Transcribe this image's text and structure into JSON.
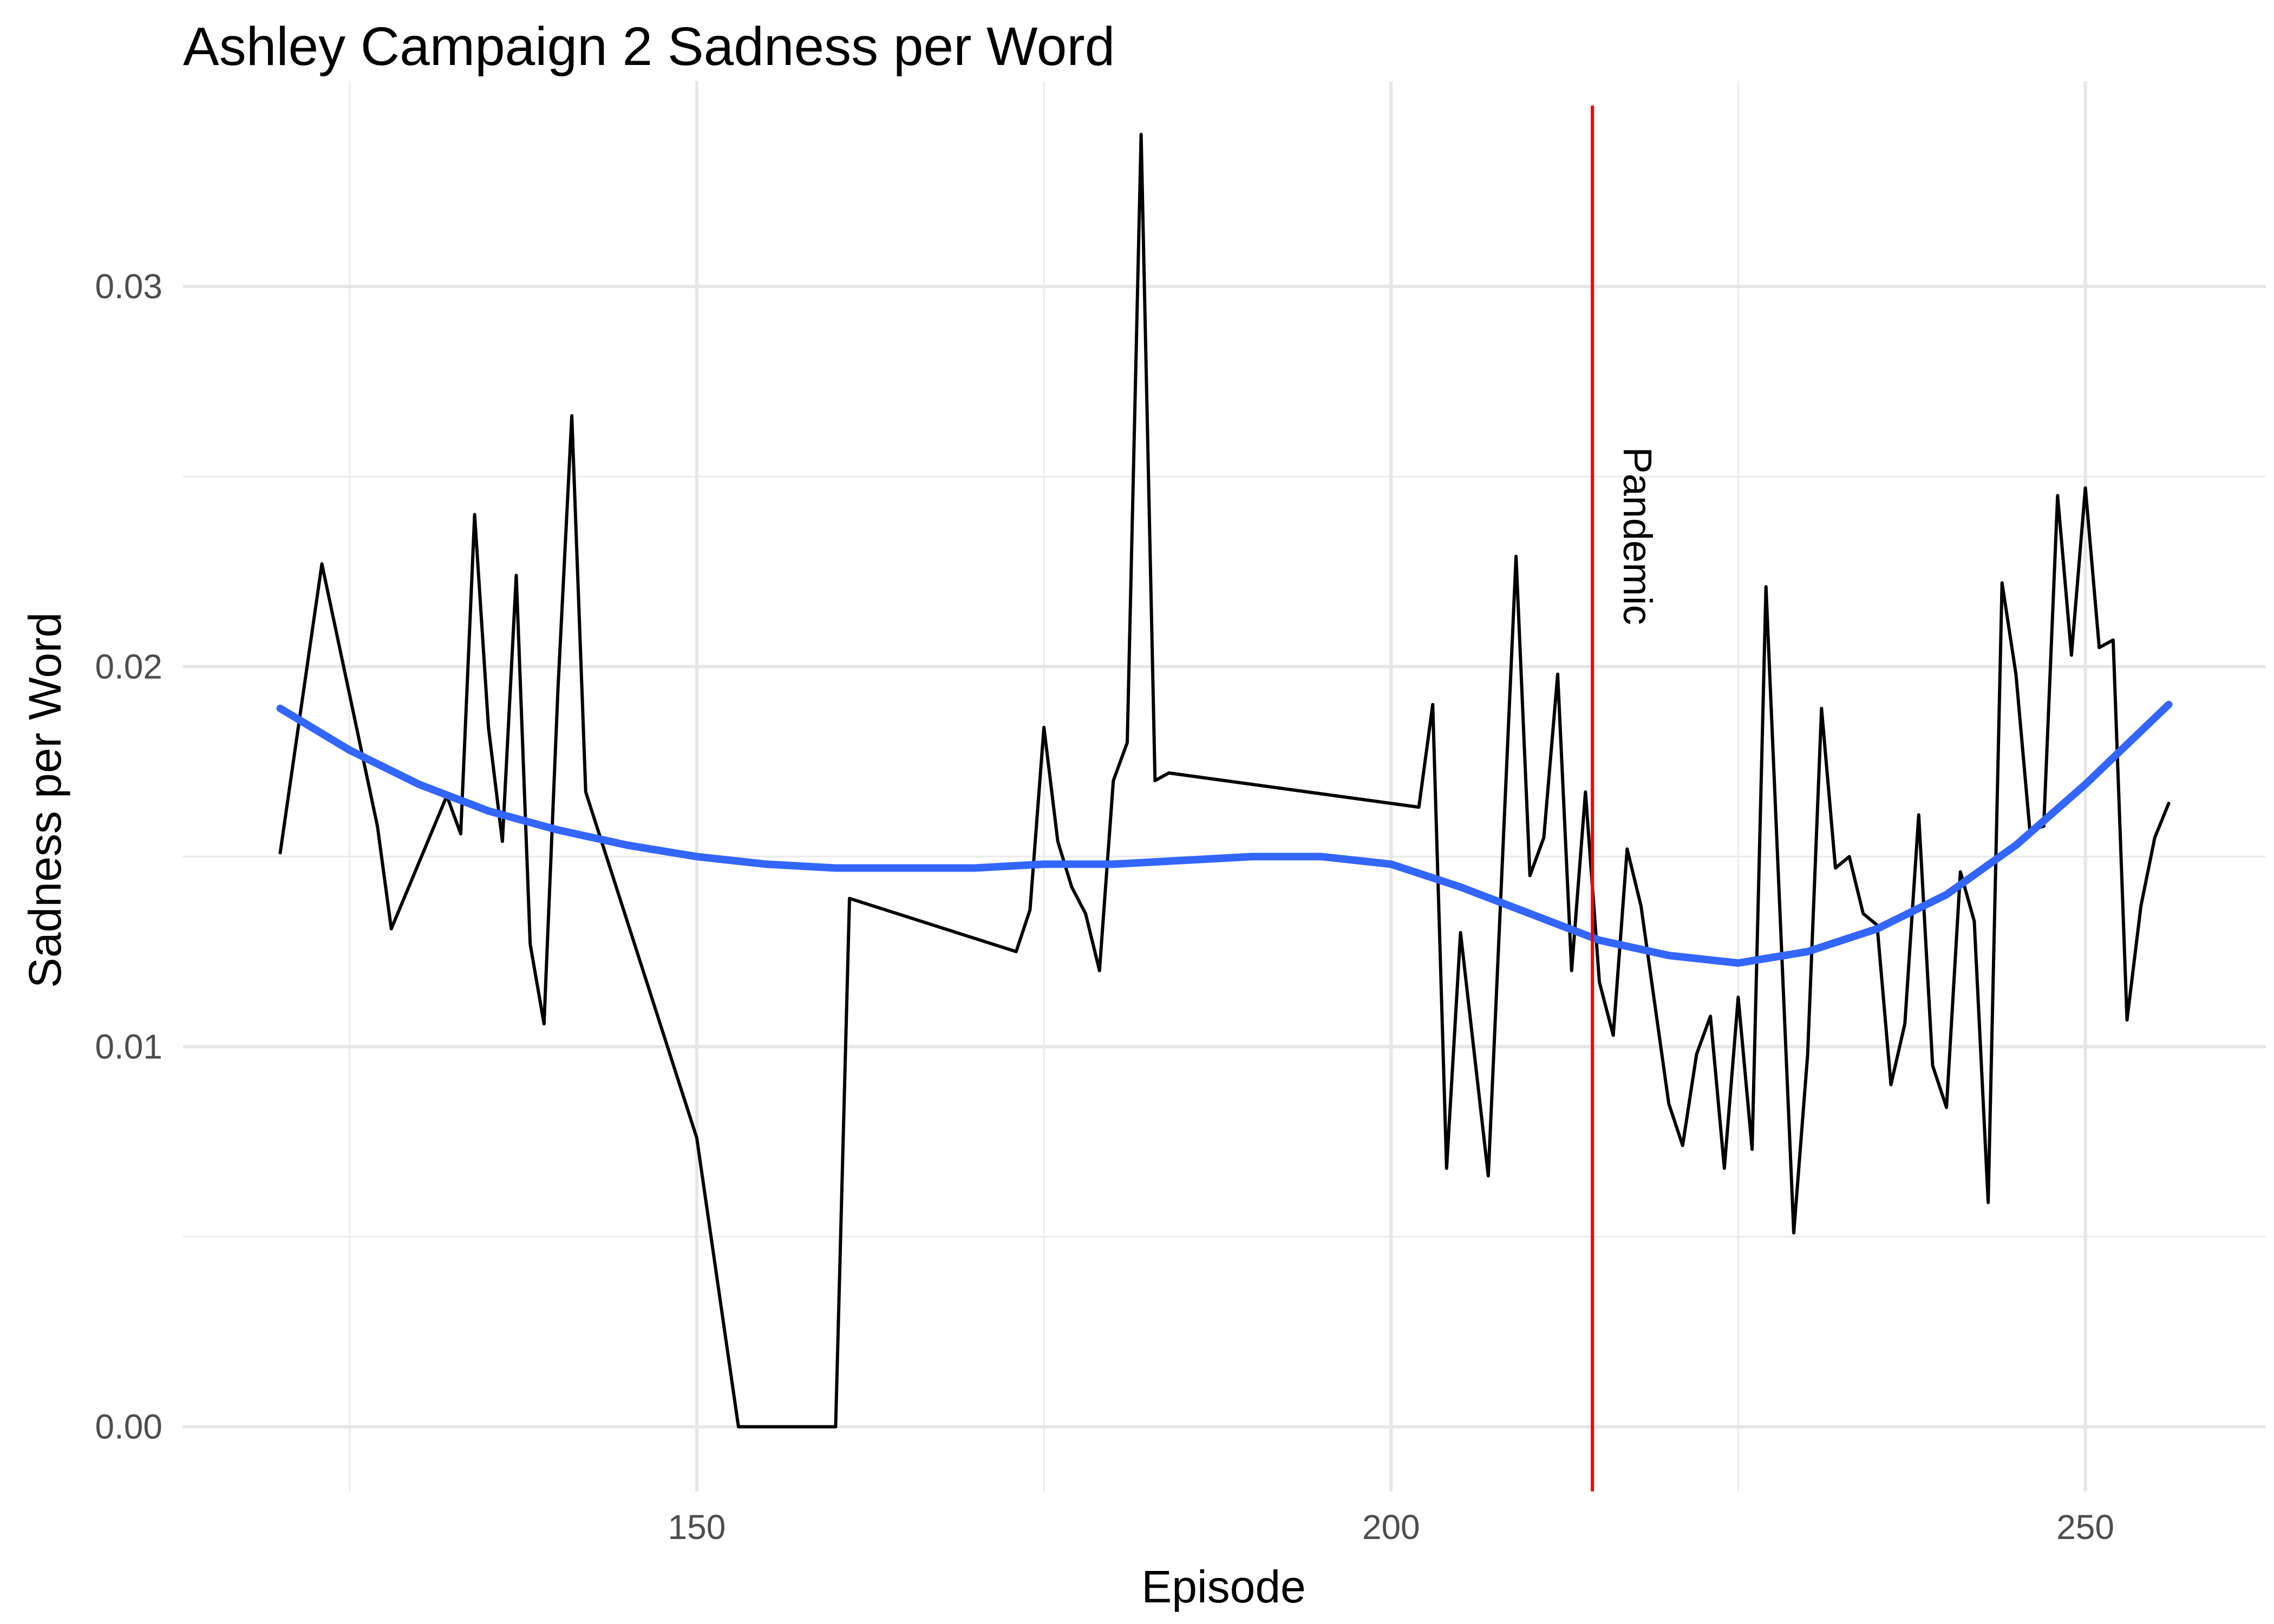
{
  "chart_data": {
    "type": "line",
    "title": "Ashley Campaign 2 Sadness per Word",
    "xlabel": "Episode",
    "ylabel": "Sadness per Word",
    "xlim": [
      113,
      263
    ],
    "ylim": [
      -0.0017,
      0.0354
    ],
    "x_major_ticks": [
      150,
      200,
      250
    ],
    "x_minor_ticks": [
      125,
      175,
      225
    ],
    "x_tick_labels": [
      "150",
      "200",
      "250"
    ],
    "y_major_ticks": [
      0.0,
      0.01,
      0.02,
      0.03
    ],
    "y_minor_ticks": [
      0.005,
      0.015,
      0.025
    ],
    "y_tick_labels": [
      "0.00",
      "0.01",
      "0.02",
      "0.03"
    ],
    "grid": true,
    "series": [
      {
        "color": "#000000",
        "x": [
          120,
          123,
          127,
          128,
          132,
          133,
          134,
          135,
          136,
          137,
          138,
          139,
          140,
          141,
          142,
          150,
          153,
          160,
          161,
          173,
          174,
          175,
          176,
          177,
          178,
          179,
          180,
          181,
          182,
          183,
          184,
          202,
          203,
          204,
          205,
          207,
          209,
          210,
          211,
          212,
          213,
          214,
          215,
          216,
          217,
          218,
          220,
          221,
          222,
          223,
          224,
          225,
          226,
          227,
          229,
          230,
          231,
          232,
          233,
          234,
          235,
          236,
          237,
          238,
          239,
          240,
          241,
          242,
          243,
          244,
          245,
          246,
          247,
          248,
          249,
          250,
          251,
          252,
          253,
          254,
          255,
          256
        ],
        "y": [
          0.0151,
          0.0227,
          0.0158,
          0.0131,
          0.0166,
          0.0156,
          0.024,
          0.0184,
          0.0154,
          0.0224,
          0.0127,
          0.0106,
          0.0194,
          0.0266,
          0.0167,
          0.0076,
          0.0,
          0.0,
          0.0139,
          0.0125,
          0.0136,
          0.0184,
          0.0154,
          0.0142,
          0.0135,
          0.012,
          0.017,
          0.018,
          0.034,
          0.017,
          0.0172,
          0.0163,
          0.019,
          0.0068,
          0.013,
          0.0066,
          0.0229,
          0.0145,
          0.0155,
          0.0198,
          0.012,
          0.0167,
          0.0117,
          0.0103,
          0.0152,
          0.0137,
          0.0085,
          0.0074,
          0.0098,
          0.0108,
          0.0068,
          0.0113,
          0.0073,
          0.0221,
          0.0051,
          0.0098,
          0.0189,
          0.0147,
          0.015,
          0.0135,
          0.0132,
          0.009,
          0.0106,
          0.0161,
          0.0095,
          0.0084,
          0.0146,
          0.0133,
          0.0059,
          0.0222,
          0.0198,
          0.0157,
          0.0158,
          0.0245,
          0.0203,
          0.0247,
          0.0205,
          0.0207,
          0.0107,
          0.0137,
          0.0155,
          0.0164
        ]
      },
      {
        "color": "#3366FF",
        "x": [
          120,
          125,
          130,
          135,
          140,
          145,
          150,
          155,
          160,
          165,
          170,
          175,
          180,
          185,
          190,
          195,
          200,
          205,
          210,
          215,
          220,
          225,
          230,
          235,
          240,
          245,
          250,
          256
        ],
        "y": [
          0.0189,
          0.0178,
          0.0169,
          0.0162,
          0.0157,
          0.0153,
          0.015,
          0.0148,
          0.0147,
          0.0147,
          0.0147,
          0.0148,
          0.0148,
          0.0149,
          0.015,
          0.015,
          0.0148,
          0.0142,
          0.0135,
          0.0128,
          0.0124,
          0.0122,
          0.0125,
          0.0131,
          0.014,
          0.0153,
          0.0169,
          0.019
        ]
      }
    ],
    "annotations": [
      {
        "type": "vline",
        "x": 214.5,
        "color": "#FF0000",
        "label": "Pandemic"
      }
    ]
  }
}
